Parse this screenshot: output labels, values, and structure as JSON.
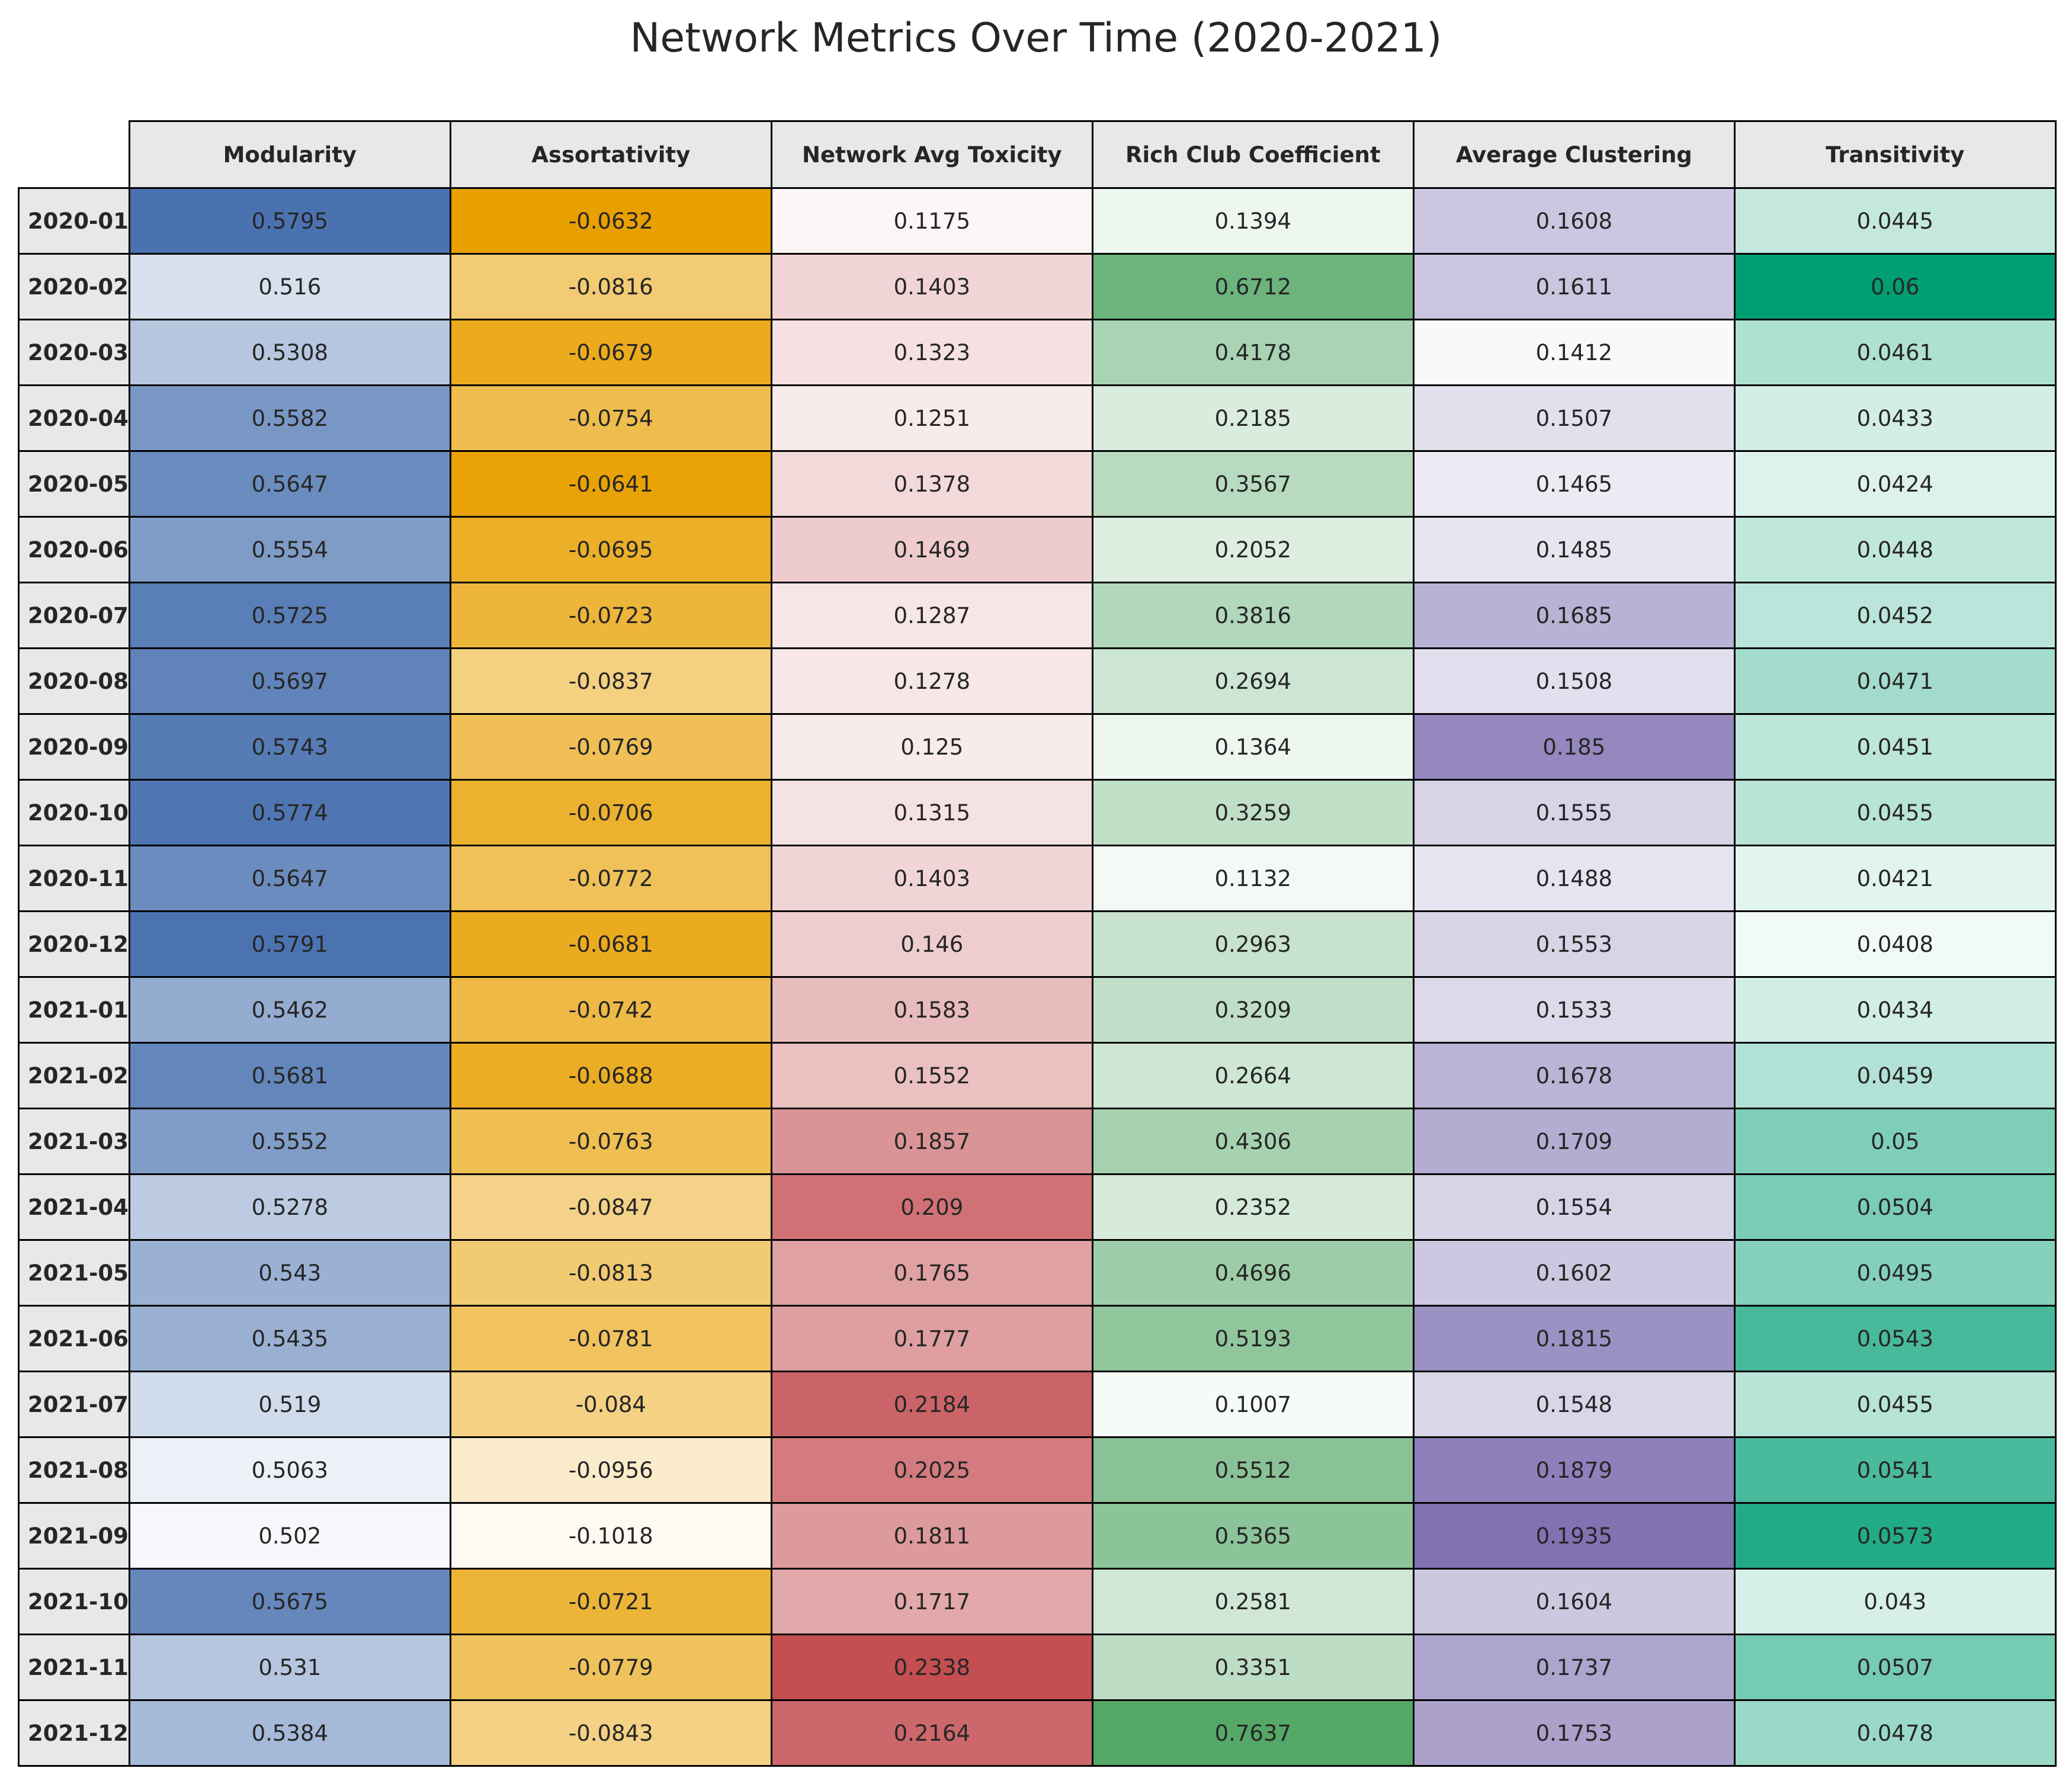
{
  "chart_data": {
    "type": "table",
    "title": "Network Metrics Over Time (2020-2021)",
    "columns": [
      "Modularity",
      "Assortativity",
      "Network Avg Toxicity",
      "Rich Club Coefficient",
      "Average Clustering",
      "Transitivity"
    ],
    "rows": [
      "2020-01",
      "2020-02",
      "2020-03",
      "2020-04",
      "2020-05",
      "2020-06",
      "2020-07",
      "2020-08",
      "2020-09",
      "2020-10",
      "2020-11",
      "2020-12",
      "2021-01",
      "2021-02",
      "2021-03",
      "2021-04",
      "2021-05",
      "2021-06",
      "2021-07",
      "2021-08",
      "2021-09",
      "2021-10",
      "2021-11",
      "2021-12"
    ],
    "values": [
      [
        "0.5795",
        "-0.0632",
        "0.1175",
        "0.1394",
        "0.1608",
        "0.0445"
      ],
      [
        "0.516",
        "-0.0816",
        "0.1403",
        "0.6712",
        "0.1611",
        "0.06"
      ],
      [
        "0.5308",
        "-0.0679",
        "0.1323",
        "0.4178",
        "0.1412",
        "0.0461"
      ],
      [
        "0.5582",
        "-0.0754",
        "0.1251",
        "0.2185",
        "0.1507",
        "0.0433"
      ],
      [
        "0.5647",
        "-0.0641",
        "0.1378",
        "0.3567",
        "0.1465",
        "0.0424"
      ],
      [
        "0.5554",
        "-0.0695",
        "0.1469",
        "0.2052",
        "0.1485",
        "0.0448"
      ],
      [
        "0.5725",
        "-0.0723",
        "0.1287",
        "0.3816",
        "0.1685",
        "0.0452"
      ],
      [
        "0.5697",
        "-0.0837",
        "0.1278",
        "0.2694",
        "0.1508",
        "0.0471"
      ],
      [
        "0.5743",
        "-0.0769",
        "0.125",
        "0.1364",
        "0.185",
        "0.0451"
      ],
      [
        "0.5774",
        "-0.0706",
        "0.1315",
        "0.3259",
        "0.1555",
        "0.0455"
      ],
      [
        "0.5647",
        "-0.0772",
        "0.1403",
        "0.1132",
        "0.1488",
        "0.0421"
      ],
      [
        "0.5791",
        "-0.0681",
        "0.146",
        "0.2963",
        "0.1553",
        "0.0408"
      ],
      [
        "0.5462",
        "-0.0742",
        "0.1583",
        "0.3209",
        "0.1533",
        "0.0434"
      ],
      [
        "0.5681",
        "-0.0688",
        "0.1552",
        "0.2664",
        "0.1678",
        "0.0459"
      ],
      [
        "0.5552",
        "-0.0763",
        "0.1857",
        "0.4306",
        "0.1709",
        "0.05"
      ],
      [
        "0.5278",
        "-0.0847",
        "0.209",
        "0.2352",
        "0.1554",
        "0.0504"
      ],
      [
        "0.543",
        "-0.0813",
        "0.1765",
        "0.4696",
        "0.1602",
        "0.0495"
      ],
      [
        "0.5435",
        "-0.0781",
        "0.1777",
        "0.5193",
        "0.1815",
        "0.0543"
      ],
      [
        "0.519",
        "-0.084",
        "0.2184",
        "0.1007",
        "0.1548",
        "0.0455"
      ],
      [
        "0.5063",
        "-0.0956",
        "0.2025",
        "0.5512",
        "0.1879",
        "0.0541"
      ],
      [
        "0.502",
        "-0.1018",
        "0.1811",
        "0.5365",
        "0.1935",
        "0.0573"
      ],
      [
        "0.5675",
        "-0.0721",
        "0.1717",
        "0.2581",
        "0.1604",
        "0.043"
      ],
      [
        "0.531",
        "-0.0779",
        "0.2338",
        "0.3351",
        "0.1737",
        "0.0507"
      ],
      [
        "0.5384",
        "-0.0843",
        "0.2164",
        "0.7637",
        "0.1753",
        "0.0478"
      ]
    ],
    "column_colors": [
      "#4a72b0",
      "#e8a000",
      "#c44e52",
      "#55a868",
      "#8172b2",
      "#009e73"
    ]
  }
}
